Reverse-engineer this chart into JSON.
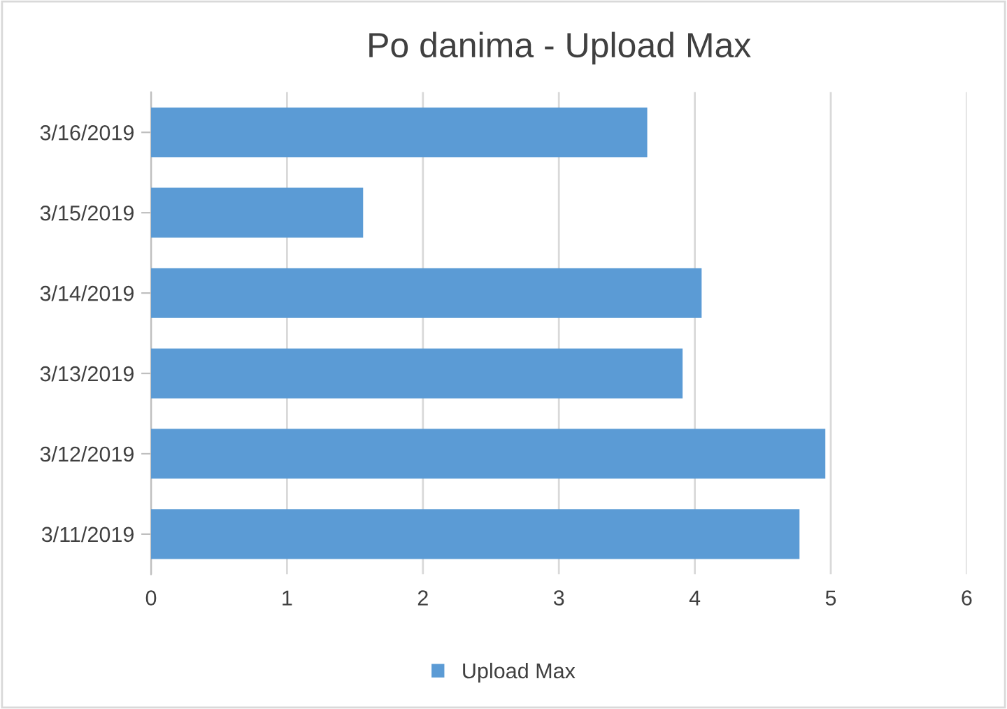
{
  "chart_data": {
    "type": "bar",
    "orientation": "horizontal",
    "title": "Po danima - Upload Max",
    "categories": [
      "3/16/2019",
      "3/15/2019",
      "3/14/2019",
      "3/13/2019",
      "3/12/2019",
      "3/11/2019"
    ],
    "series": [
      {
        "name": "Upload Max",
        "color": "#5b9bd5",
        "values": [
          3.65,
          1.56,
          4.05,
          3.91,
          4.96,
          4.77
        ]
      }
    ],
    "xlim": [
      0,
      6
    ],
    "xticks": [
      0,
      1,
      2,
      3,
      4,
      5,
      6
    ],
    "grid": "x",
    "legend": "bottom"
  }
}
